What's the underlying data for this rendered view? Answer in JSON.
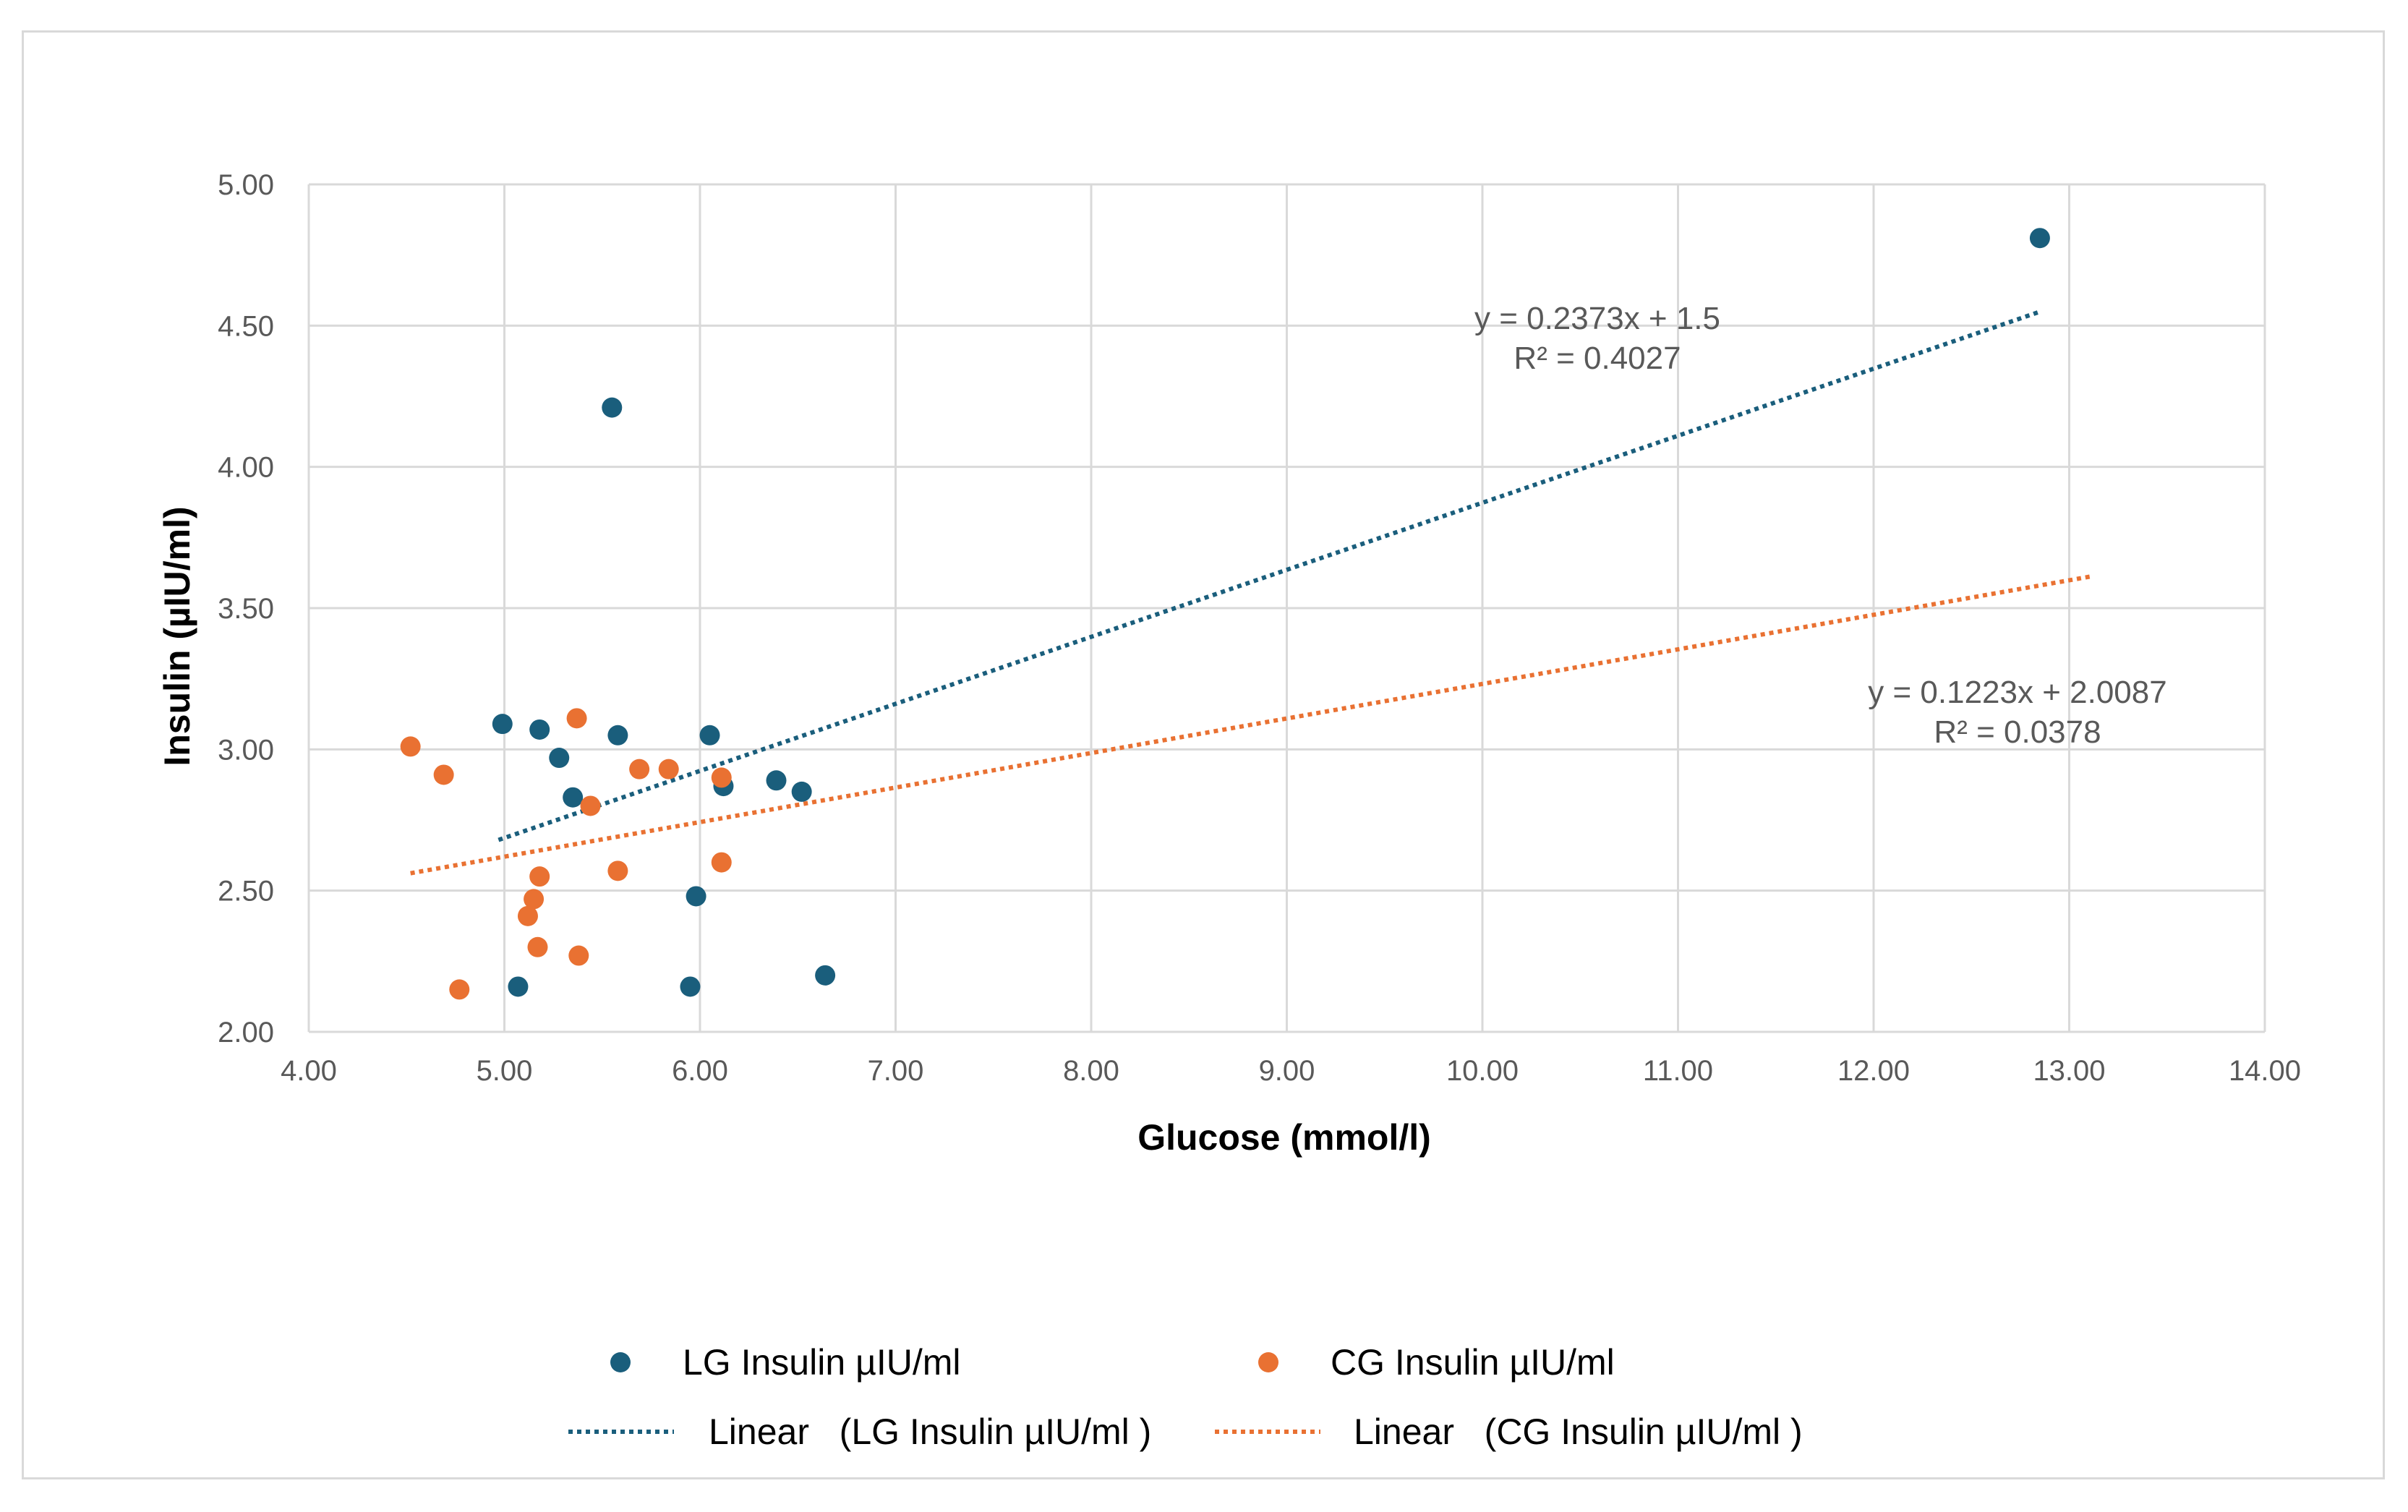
{
  "chart_data": {
    "type": "scatter",
    "title": "",
    "xlabel": "Glucose (mmol/l)",
    "ylabel": "Insulin (µIU/ml)",
    "xlim": [
      4,
      14
    ],
    "ylim": [
      2,
      5
    ],
    "x_ticks": [
      "4.00",
      "5.00",
      "6.00",
      "7.00",
      "8.00",
      "9.00",
      "10.00",
      "11.00",
      "12.00",
      "13.00",
      "14.00"
    ],
    "y_ticks": [
      "2.00",
      "2.50",
      "3.00",
      "3.50",
      "4.00",
      "4.50",
      "5.00"
    ],
    "grid": true,
    "legend_position": "bottom",
    "series": [
      {
        "name": "LG Insulin µIU/ml",
        "color": "#1a5e7c",
        "points": [
          {
            "x": 4.99,
            "y": 3.09
          },
          {
            "x": 5.18,
            "y": 3.07
          },
          {
            "x": 5.28,
            "y": 2.97
          },
          {
            "x": 5.35,
            "y": 2.83
          },
          {
            "x": 5.55,
            "y": 4.21
          },
          {
            "x": 5.58,
            "y": 3.05
          },
          {
            "x": 6.05,
            "y": 3.05
          },
          {
            "x": 5.98,
            "y": 2.48
          },
          {
            "x": 6.12,
            "y": 2.87
          },
          {
            "x": 6.39,
            "y": 2.89
          },
          {
            "x": 6.52,
            "y": 2.85
          },
          {
            "x": 5.07,
            "y": 2.16
          },
          {
            "x": 5.95,
            "y": 2.16
          },
          {
            "x": 6.64,
            "y": 2.2
          },
          {
            "x": 12.85,
            "y": 4.81
          }
        ]
      },
      {
        "name": "CG Insulin µIU/ml",
        "color": "#e97132",
        "points": [
          {
            "x": 4.52,
            "y": 3.01
          },
          {
            "x": 4.69,
            "y": 2.91
          },
          {
            "x": 4.77,
            "y": 2.15
          },
          {
            "x": 5.12,
            "y": 2.41
          },
          {
            "x": 5.15,
            "y": 2.47
          },
          {
            "x": 5.17,
            "y": 2.3
          },
          {
            "x": 5.18,
            "y": 2.55
          },
          {
            "x": 5.37,
            "y": 3.11
          },
          {
            "x": 5.38,
            "y": 2.27
          },
          {
            "x": 5.44,
            "y": 2.8
          },
          {
            "x": 5.58,
            "y": 2.57
          },
          {
            "x": 5.69,
            "y": 2.93
          },
          {
            "x": 5.84,
            "y": 2.93
          },
          {
            "x": 6.11,
            "y": 2.9
          },
          {
            "x": 6.11,
            "y": 2.6
          }
        ]
      }
    ],
    "trendlines": [
      {
        "name": "Linear   (LG Insulin µIU/ml )",
        "color": "#1a5e7c",
        "slope": 0.2373,
        "intercept": 1.5,
        "x_start": 4.97,
        "x_end": 12.85,
        "equation": "y = 0.2373x + 1.5",
        "r2": "R² = 0.4027"
      },
      {
        "name": "Linear   (CG Insulin µIU/ml )",
        "color": "#e97132",
        "slope": 0.1223,
        "intercept": 2.0087,
        "x_start": 4.52,
        "x_end": 13.12,
        "equation": "y = 0.1223x + 2.0087",
        "r2": "R² = 0.0378"
      }
    ]
  }
}
